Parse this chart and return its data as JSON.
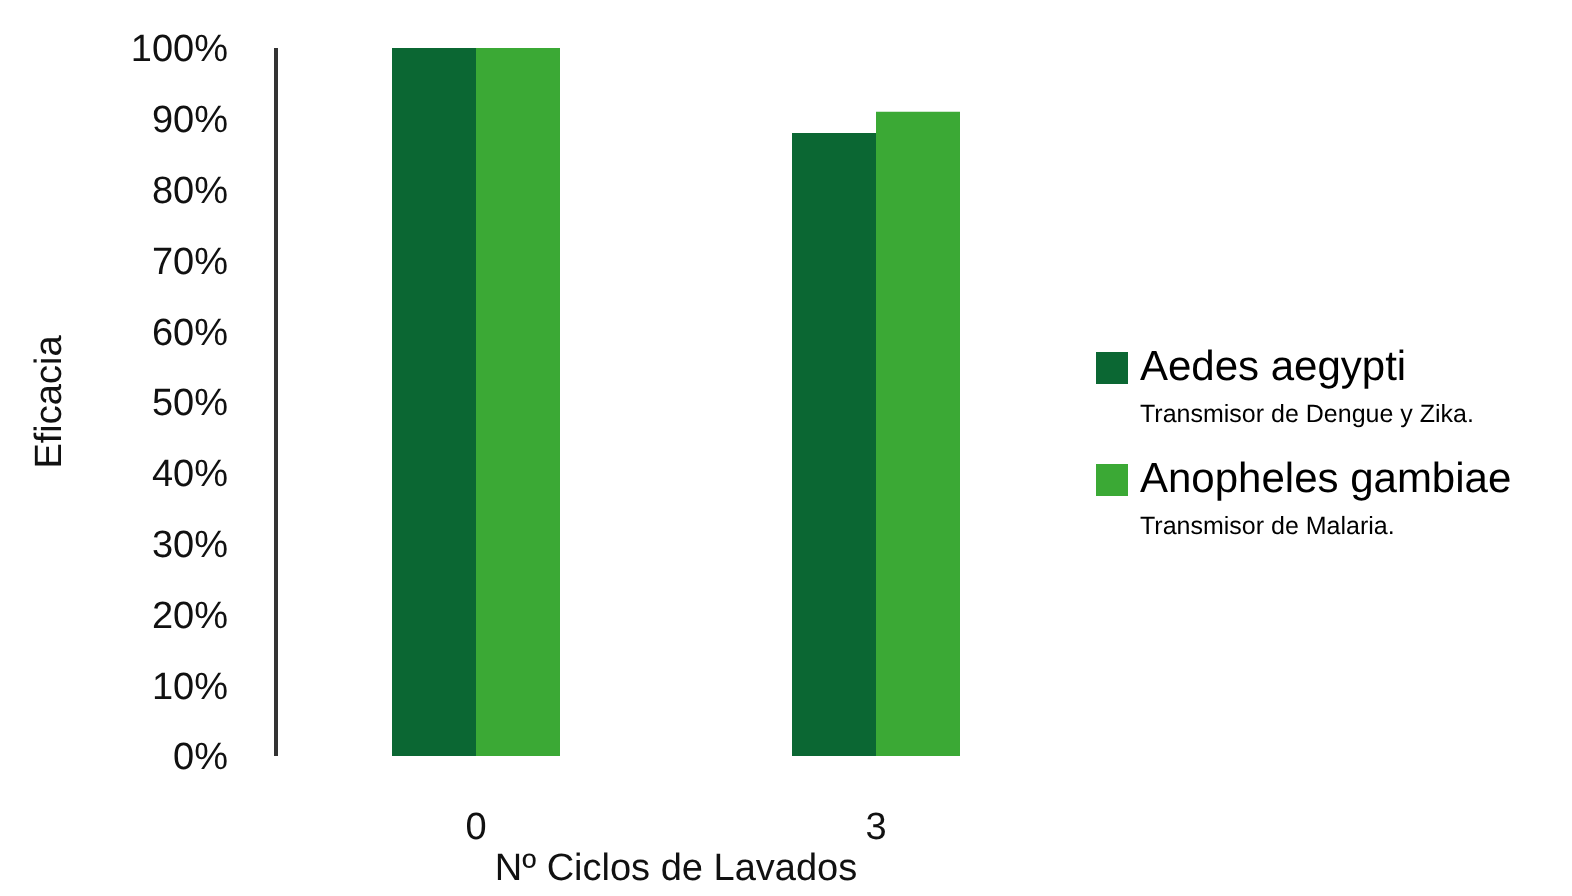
{
  "chart_data": {
    "type": "bar",
    "xlabel": "Nº Ciclos de Lavados",
    "ylabel": "Eficacia",
    "categories": [
      "0",
      "3"
    ],
    "series": [
      {
        "name": "Aedes aegypti",
        "color": "#0b6733",
        "values": [
          100,
          88
        ]
      },
      {
        "name": "Anopheles gambiae",
        "color": "#3ba935",
        "values": [
          100,
          91
        ]
      }
    ],
    "annotations": [
      "Transmisor de Dengue y Zika.",
      "Transmisor de Malaria."
    ],
    "ylim": [
      0,
      100
    ],
    "yticks": [
      {
        "value": 0,
        "label": "0%"
      },
      {
        "value": 10,
        "label": "10%"
      },
      {
        "value": 20,
        "label": "20%"
      },
      {
        "value": 30,
        "label": "30%"
      },
      {
        "value": 40,
        "label": "40%"
      },
      {
        "value": 50,
        "label": "50%"
      },
      {
        "value": 60,
        "label": "60%"
      },
      {
        "value": 70,
        "label": "70%"
      },
      {
        "value": 80,
        "label": "80%"
      },
      {
        "value": 90,
        "label": "90%"
      },
      {
        "value": 100,
        "label": "100%"
      }
    ],
    "legend": "right",
    "grid": false
  }
}
